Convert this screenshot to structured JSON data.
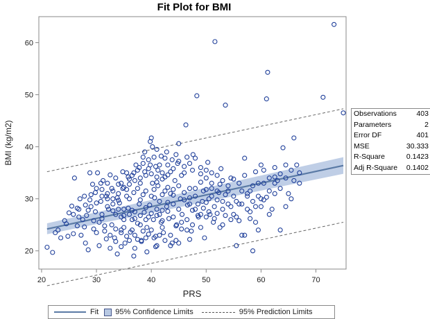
{
  "chart_data": {
    "type": "scatter",
    "title": "Fit Plot for BMI",
    "xlabel": "PRS",
    "ylabel": "BMI (kg/m2)",
    "xlim": [
      19.5,
      75.5
    ],
    "ylim": [
      16.5,
      65
    ],
    "xticks": [
      20,
      30,
      40,
      50,
      60,
      70
    ],
    "yticks": [
      20,
      30,
      40,
      50,
      60
    ],
    "grid": false,
    "fit": {
      "x": [
        21,
        75
      ],
      "y": [
        24.2,
        36.4
      ]
    },
    "confidence_band": {
      "x": [
        21,
        75
      ],
      "lower": [
        23.2,
        34.8
      ],
      "upper": [
        25.3,
        38.0
      ]
    },
    "prediction_limits": {
      "x": [
        21,
        75
      ],
      "lower": [
        13.3,
        25.5
      ],
      "upper": [
        35.2,
        47.3
      ]
    },
    "statistics": [
      {
        "label": "Observations",
        "value": "403"
      },
      {
        "label": "Parameters",
        "value": "2"
      },
      {
        "label": "Error DF",
        "value": "401"
      },
      {
        "label": "MSE",
        "value": "30.333"
      },
      {
        "label": "R-Square",
        "value": "0.1423"
      },
      {
        "label": "Adj R-Square",
        "value": "0.1402"
      }
    ],
    "legend": {
      "placement": "bottom",
      "items": [
        {
          "label": "Fit"
        },
        {
          "label": "95% Confidence Limits"
        },
        {
          "label": "95% Prediction Limits"
        }
      ]
    },
    "points": [
      [
        21.0,
        20.7
      ],
      [
        22.0,
        19.7
      ],
      [
        23.0,
        24.0
      ],
      [
        23.5,
        22.5
      ],
      [
        24.5,
        25.2
      ],
      [
        24.8,
        22.8
      ],
      [
        25.0,
        27.3
      ],
      [
        25.5,
        28.6
      ],
      [
        26.0,
        34.0
      ],
      [
        26.5,
        28.2
      ],
      [
        26.8,
        26.5
      ],
      [
        27.0,
        30.0
      ],
      [
        27.2,
        23.0
      ],
      [
        27.8,
        24.6
      ],
      [
        28.0,
        21.5
      ],
      [
        28.2,
        26.8
      ],
      [
        28.5,
        20.2
      ],
      [
        28.8,
        35.0
      ],
      [
        29.0,
        28.5
      ],
      [
        29.3,
        32.8
      ],
      [
        29.5,
        25.8
      ],
      [
        29.8,
        27.5
      ],
      [
        30.0,
        23.5
      ],
      [
        30.2,
        35.0
      ],
      [
        30.5,
        21.0
      ],
      [
        30.8,
        29.5
      ],
      [
        31.0,
        26.2
      ],
      [
        31.2,
        33.5
      ],
      [
        31.5,
        24.8
      ],
      [
        31.8,
        22.3
      ],
      [
        32.0,
        31.0
      ],
      [
        32.2,
        28.0
      ],
      [
        32.5,
        34.6
      ],
      [
        32.8,
        25.0
      ],
      [
        33.0,
        30.0
      ],
      [
        33.3,
        22.5
      ],
      [
        33.5,
        27.0
      ],
      [
        33.8,
        19.4
      ],
      [
        34.0,
        32.8
      ],
      [
        34.2,
        29.2
      ],
      [
        34.5,
        24.0
      ],
      [
        34.8,
        35.2
      ],
      [
        35.0,
        26.8
      ],
      [
        35.2,
        21.5
      ],
      [
        35.5,
        30.5
      ],
      [
        35.8,
        28.2
      ],
      [
        36.0,
        33.8
      ],
      [
        36.2,
        23.6
      ],
      [
        36.5,
        27.8
      ],
      [
        36.8,
        31.2
      ],
      [
        37.0,
        20.5
      ],
      [
        37.2,
        36.5
      ],
      [
        37.5,
        25.3
      ],
      [
        37.8,
        29.0
      ],
      [
        38.0,
        34.0
      ],
      [
        38.2,
        22.0
      ],
      [
        38.5,
        38.0
      ],
      [
        38.7,
        27.4
      ],
      [
        39.0,
        31.5
      ],
      [
        39.2,
        24.5
      ],
      [
        39.5,
        35.8
      ],
      [
        39.7,
        28.8
      ],
      [
        40.0,
        41.7
      ],
      [
        40.2,
        33.0
      ],
      [
        40.4,
        26.0
      ],
      [
        40.6,
        30.2
      ],
      [
        40.8,
        22.8
      ],
      [
        41.0,
        39.5
      ],
      [
        41.2,
        32.5
      ],
      [
        41.5,
        27.0
      ],
      [
        41.8,
        25.5
      ],
      [
        42.0,
        30.8
      ],
      [
        42.2,
        23.5
      ],
      [
        42.5,
        34.2
      ],
      [
        42.8,
        28.5
      ],
      [
        43.0,
        36.5
      ],
      [
        43.2,
        26.2
      ],
      [
        43.5,
        31.0
      ],
      [
        43.8,
        21.5
      ],
      [
        44.0,
        29.0
      ],
      [
        44.3,
        33.5
      ],
      [
        44.6,
        25.0
      ],
      [
        45.0,
        40.6
      ],
      [
        45.3,
        30.0
      ],
      [
        45.6,
        27.0
      ],
      [
        46.0,
        36.2
      ],
      [
        46.3,
        44.2
      ],
      [
        46.6,
        28.8
      ],
      [
        47.0,
        32.0
      ],
      [
        47.3,
        23.8
      ],
      [
        47.6,
        38.5
      ],
      [
        48.0,
        30.5
      ],
      [
        48.3,
        49.8
      ],
      [
        48.6,
        26.5
      ],
      [
        49.0,
        34.8
      ],
      [
        49.3,
        29.5
      ],
      [
        49.7,
        22.5
      ],
      [
        50.0,
        31.8
      ],
      [
        50.3,
        37.0
      ],
      [
        50.7,
        27.0
      ],
      [
        51.0,
        33.0
      ],
      [
        51.3,
        25.5
      ],
      [
        51.6,
        60.2
      ],
      [
        52.0,
        29.8
      ],
      [
        52.3,
        31.2
      ],
      [
        52.7,
        35.8
      ],
      [
        53.0,
        28.0
      ],
      [
        53.5,
        48.0
      ],
      [
        54.0,
        32.5
      ],
      [
        54.5,
        26.0
      ],
      [
        55.0,
        33.8
      ],
      [
        55.5,
        21.0
      ],
      [
        56.0,
        29.0
      ],
      [
        56.5,
        23.0
      ],
      [
        57.0,
        37.8
      ],
      [
        57.5,
        30.5
      ],
      [
        58.0,
        27.5
      ],
      [
        58.5,
        20.0
      ],
      [
        59.0,
        35.2
      ],
      [
        59.5,
        24.0
      ],
      [
        60.0,
        30.0
      ],
      [
        60.5,
        33.0
      ],
      [
        61.0,
        49.2
      ],
      [
        61.2,
        54.3
      ],
      [
        61.5,
        31.5
      ],
      [
        62.0,
        28.0
      ],
      [
        62.5,
        36.0
      ],
      [
        63.0,
        33.5
      ],
      [
        63.5,
        24.0
      ],
      [
        64.0,
        39.8
      ],
      [
        64.5,
        28.5
      ],
      [
        65.0,
        31.0
      ],
      [
        66.0,
        41.7
      ],
      [
        66.5,
        36.5
      ],
      [
        67.0,
        33.0
      ],
      [
        71.3,
        49.5
      ],
      [
        73.3,
        63.5
      ],
      [
        75.0,
        46.5
      ],
      [
        34.0,
        29.7
      ],
      [
        35.0,
        28.0
      ],
      [
        36.0,
        30.0
      ],
      [
        37.0,
        27.5
      ],
      [
        38.0,
        29.8
      ],
      [
        39.0,
        28.3
      ],
      [
        40.0,
        30.5
      ],
      [
        41.0,
        28.0
      ],
      [
        42.0,
        27.8
      ],
      [
        43.0,
        29.3
      ],
      [
        44.0,
        30.7
      ],
      [
        33.0,
        27.7
      ],
      [
        32.0,
        28.5
      ],
      [
        31.0,
        27.0
      ],
      [
        38.5,
        30.8
      ],
      [
        39.5,
        26.5
      ],
      [
        40.5,
        31.8
      ],
      [
        41.5,
        29.5
      ],
      [
        37.5,
        32.0
      ],
      [
        36.5,
        26.0
      ],
      [
        42.5,
        31.5
      ],
      [
        35.5,
        31.8
      ],
      [
        34.5,
        26.5
      ],
      [
        38.0,
        25.0
      ],
      [
        40.0,
        24.0
      ],
      [
        39.0,
        22.5
      ],
      [
        41.0,
        21.0
      ],
      [
        37.0,
        23.0
      ],
      [
        36.0,
        22.0
      ],
      [
        35.0,
        24.5
      ],
      [
        42.0,
        24.5
      ],
      [
        43.5,
        23.0
      ],
      [
        44.5,
        22.0
      ],
      [
        45.5,
        24.2
      ],
      [
        46.5,
        26.0
      ],
      [
        47.5,
        27.8
      ],
      [
        48.5,
        29.0
      ],
      [
        49.5,
        31.5
      ],
      [
        50.5,
        30.0
      ],
      [
        51.5,
        28.5
      ],
      [
        52.5,
        32.8
      ],
      [
        53.5,
        30.8
      ],
      [
        54.5,
        34.0
      ],
      [
        55.5,
        29.5
      ],
      [
        56.5,
        31.5
      ],
      [
        57.5,
        28.0
      ],
      [
        58.5,
        32.5
      ],
      [
        59.5,
        30.5
      ],
      [
        60.5,
        35.5
      ],
      [
        61.5,
        34.0
      ],
      [
        62.5,
        31.0
      ],
      [
        63.5,
        34.8
      ],
      [
        64.5,
        36.5
      ],
      [
        65.5,
        30.0
      ],
      [
        66.0,
        33.5
      ],
      [
        67.0,
        35.0
      ],
      [
        30.5,
        25.5
      ],
      [
        29.5,
        24.2
      ],
      [
        28.5,
        27.8
      ],
      [
        27.5,
        26.0
      ],
      [
        26.5,
        24.8
      ],
      [
        25.8,
        23.3
      ],
      [
        24.2,
        25.8
      ],
      [
        22.5,
        23.5
      ],
      [
        33.5,
        34.0
      ],
      [
        34.5,
        33.0
      ],
      [
        35.5,
        35.0
      ],
      [
        36.5,
        34.5
      ],
      [
        37.5,
        35.5
      ],
      [
        38.5,
        36.8
      ],
      [
        39.5,
        37.5
      ],
      [
        40.5,
        38.0
      ],
      [
        41.5,
        36.5
      ],
      [
        42.5,
        37.8
      ],
      [
        43.5,
        35.2
      ],
      [
        44.5,
        38.5
      ],
      [
        39.8,
        41.0
      ],
      [
        40.2,
        40.0
      ],
      [
        38.8,
        39.0
      ],
      [
        41.2,
        35.5
      ],
      [
        32.5,
        20.5
      ],
      [
        33.5,
        21.8
      ],
      [
        34.5,
        20.8
      ],
      [
        36.8,
        19.0
      ],
      [
        39.2,
        19.8
      ],
      [
        40.8,
        20.8
      ],
      [
        38.2,
        21.8
      ],
      [
        45.0,
        21.5
      ],
      [
        47.0,
        22.2
      ],
      [
        49.0,
        24.5
      ],
      [
        50.0,
        26.5
      ],
      [
        52.0,
        27.2
      ],
      [
        53.0,
        25.0
      ],
      [
        55.0,
        27.0
      ],
      [
        56.0,
        25.8
      ],
      [
        57.0,
        23.0
      ],
      [
        58.0,
        26.2
      ],
      [
        59.0,
        25.5
      ],
      [
        60.0,
        28.5
      ],
      [
        61.0,
        30.3
      ],
      [
        62.5,
        33.0
      ],
      [
        30.0,
        32.0
      ],
      [
        31.0,
        30.5
      ],
      [
        32.0,
        33.0
      ],
      [
        33.0,
        31.5
      ],
      [
        34.0,
        31.0
      ],
      [
        35.0,
        32.2
      ],
      [
        36.0,
        32.8
      ],
      [
        37.0,
        33.5
      ],
      [
        38.0,
        33.0
      ],
      [
        39.0,
        34.5
      ],
      [
        40.0,
        34.8
      ],
      [
        41.0,
        33.2
      ],
      [
        42.0,
        33.8
      ],
      [
        43.0,
        32.2
      ],
      [
        44.0,
        31.8
      ],
      [
        45.0,
        32.5
      ],
      [
        46.0,
        31.2
      ],
      [
        47.0,
        29.0
      ],
      [
        48.0,
        28.0
      ],
      [
        49.0,
        27.0
      ],
      [
        50.0,
        29.3
      ],
      [
        51.0,
        30.5
      ],
      [
        52.0,
        31.5
      ],
      [
        53.0,
        33.5
      ],
      [
        54.0,
        29.0
      ],
      [
        28.0,
        28.8
      ],
      [
        29.0,
        30.8
      ],
      [
        30.0,
        29.2
      ],
      [
        31.0,
        31.8
      ],
      [
        32.0,
        30.0
      ],
      [
        33.0,
        29.0
      ],
      [
        34.0,
        28.0
      ],
      [
        35.0,
        26.0
      ],
      [
        36.0,
        27.0
      ],
      [
        37.0,
        26.2
      ],
      [
        38.0,
        26.8
      ],
      [
        39.0,
        26.0
      ],
      [
        40.0,
        27.2
      ],
      [
        41.0,
        26.8
      ],
      [
        42.0,
        25.8
      ],
      [
        43.0,
        27.6
      ],
      [
        44.0,
        26.5
      ],
      [
        45.0,
        28.0
      ],
      [
        46.0,
        29.8
      ],
      [
        47.0,
        30.2
      ],
      [
        48.0,
        32.0
      ],
      [
        49.0,
        33.2
      ],
      [
        50.0,
        34.0
      ],
      [
        51.0,
        35.0
      ],
      [
        47.5,
        35.5
      ],
      [
        46.5,
        38.0
      ],
      [
        45.5,
        34.5
      ],
      [
        44.8,
        36.8
      ],
      [
        43.8,
        37.5
      ],
      [
        42.8,
        39.0
      ],
      [
        41.8,
        38.2
      ],
      [
        40.8,
        36.2
      ],
      [
        39.8,
        36.5
      ],
      [
        38.8,
        35.2
      ],
      [
        37.8,
        36.0
      ],
      [
        36.8,
        35.0
      ],
      [
        35.8,
        34.2
      ],
      [
        34.8,
        32.0
      ],
      [
        33.8,
        30.2
      ],
      [
        32.8,
        32.0
      ],
      [
        31.8,
        30.5
      ],
      [
        30.8,
        33.0
      ],
      [
        29.8,
        31.2
      ],
      [
        28.8,
        29.8
      ],
      [
        27.8,
        30.5
      ],
      [
        26.8,
        28.0
      ],
      [
        25.8,
        27.0
      ],
      [
        31.5,
        23.8
      ],
      [
        32.5,
        23.0
      ],
      [
        33.5,
        24.2
      ],
      [
        34.5,
        23.5
      ],
      [
        35.5,
        22.8
      ],
      [
        36.5,
        24.0
      ],
      [
        37.5,
        22.2
      ],
      [
        38.5,
        23.8
      ],
      [
        39.5,
        23.2
      ],
      [
        40.5,
        22.5
      ],
      [
        41.5,
        23.0
      ],
      [
        42.5,
        22.0
      ],
      [
        43.5,
        21.0
      ],
      [
        44.5,
        24.8
      ],
      [
        45.5,
        25.5
      ],
      [
        46.5,
        24.0
      ],
      [
        47.5,
        25.0
      ],
      [
        48.5,
        26.8
      ],
      [
        49.5,
        28.2
      ],
      [
        50.5,
        27.5
      ],
      [
        51.5,
        26.2
      ],
      [
        52.5,
        24.5
      ],
      [
        53.5,
        26.8
      ],
      [
        54.5,
        28.5
      ],
      [
        55.5,
        26.5
      ],
      [
        56.5,
        29.0
      ],
      [
        57.5,
        31.0
      ],
      [
        58.5,
        29.5
      ],
      [
        59.5,
        33.0
      ],
      [
        60.5,
        29.8
      ],
      [
        61.5,
        27.0
      ],
      [
        62.5,
        34.2
      ],
      [
        63.5,
        32.0
      ],
      [
        64.5,
        34.0
      ],
      [
        65.5,
        35.5
      ],
      [
        42.0,
        35.0
      ],
      [
        41.0,
        34.2
      ],
      [
        43.0,
        34.6
      ],
      [
        44.0,
        35.8
      ],
      [
        45.0,
        37.2
      ],
      [
        46.0,
        35.0
      ],
      [
        47.0,
        36.8
      ],
      [
        48.0,
        37.8
      ],
      [
        49.0,
        36.0
      ],
      [
        50.0,
        35.5
      ],
      [
        51.0,
        32.0
      ],
      [
        52.0,
        34.5
      ],
      [
        53.0,
        29.5
      ],
      [
        54.0,
        31.5
      ],
      [
        55.0,
        30.5
      ],
      [
        56.0,
        33.0
      ],
      [
        57.0,
        34.5
      ],
      [
        58.0,
        31.5
      ],
      [
        59.0,
        28.5
      ],
      [
        60.0,
        36.5
      ]
    ]
  }
}
